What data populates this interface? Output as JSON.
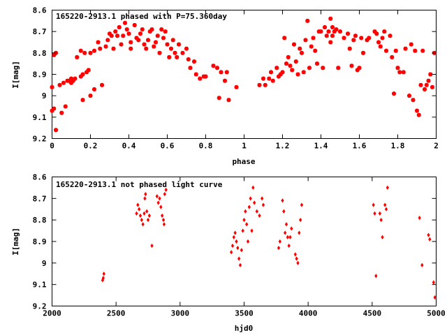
{
  "chart_data": [
    {
      "type": "scatter",
      "title": "165220-2913.1 phased with P=75.360day",
      "xlabel": "phase",
      "ylabel": "I[mag]",
      "xlim": [
        0,
        2
      ],
      "ylim": [
        8.6,
        9.2
      ],
      "y_inverted": true,
      "x_ticks": [
        "0",
        "0.2",
        "0.4",
        "0.6",
        "0.8",
        "1",
        "1.2",
        "1.4",
        "1.6",
        "1.8",
        "2"
      ],
      "y_ticks": [
        "8.6",
        "8.7",
        "8.8",
        "8.9",
        "9",
        "9.1",
        "9.2"
      ],
      "grid": false,
      "marker_color": "#ff0000",
      "points": [
        [
          0.0,
          8.96
        ],
        [
          0.0,
          9.07
        ],
        [
          0.01,
          8.81
        ],
        [
          0.01,
          9.06
        ],
        [
          0.02,
          8.8
        ],
        [
          0.02,
          9.16
        ],
        [
          0.04,
          8.95
        ],
        [
          0.05,
          9.08
        ],
        [
          0.06,
          8.94
        ],
        [
          0.07,
          9.05
        ],
        [
          0.08,
          8.93
        ],
        [
          0.09,
          8.93
        ],
        [
          0.1,
          8.92
        ],
        [
          0.1,
          8.94
        ],
        [
          0.11,
          8.93
        ],
        [
          0.12,
          8.92
        ],
        [
          0.13,
          8.82
        ],
        [
          0.15,
          8.79
        ],
        [
          0.15,
          8.91
        ],
        [
          0.16,
          8.9
        ],
        [
          0.16,
          9.02
        ],
        [
          0.17,
          8.8
        ],
        [
          0.18,
          8.89
        ],
        [
          0.19,
          8.88
        ],
        [
          0.2,
          8.8
        ],
        [
          0.2,
          9.0
        ],
        [
          0.22,
          8.79
        ],
        [
          0.22,
          8.97
        ],
        [
          0.24,
          8.75
        ],
        [
          0.25,
          8.78
        ],
        [
          0.26,
          8.95
        ],
        [
          0.28,
          8.77
        ],
        [
          0.29,
          8.74
        ],
        [
          0.3,
          8.71
        ],
        [
          0.31,
          8.72
        ],
        [
          0.32,
          8.78
        ],
        [
          0.33,
          8.7
        ],
        [
          0.34,
          8.72
        ],
        [
          0.35,
          8.68
        ],
        [
          0.36,
          8.76
        ],
        [
          0.37,
          8.72
        ],
        [
          0.38,
          8.66
        ],
        [
          0.39,
          8.69
        ],
        [
          0.4,
          8.71
        ],
        [
          0.41,
          8.75
        ],
        [
          0.41,
          8.78
        ],
        [
          0.43,
          8.67
        ],
        [
          0.44,
          8.73
        ],
        [
          0.45,
          8.74
        ],
        [
          0.46,
          8.71
        ],
        [
          0.47,
          8.69
        ],
        [
          0.48,
          8.76
        ],
        [
          0.49,
          8.78
        ],
        [
          0.5,
          8.74
        ],
        [
          0.51,
          8.7
        ],
        [
          0.52,
          8.69
        ],
        [
          0.53,
          8.77
        ],
        [
          0.54,
          8.75
        ],
        [
          0.55,
          8.72
        ],
        [
          0.56,
          8.8
        ],
        [
          0.57,
          8.69
        ],
        [
          0.58,
          8.73
        ],
        [
          0.59,
          8.7
        ],
        [
          0.6,
          8.76
        ],
        [
          0.61,
          8.82
        ],
        [
          0.62,
          8.78
        ],
        [
          0.63,
          8.74
        ],
        [
          0.64,
          8.8
        ],
        [
          0.65,
          8.82
        ],
        [
          0.66,
          8.76
        ],
        [
          0.68,
          8.8
        ],
        [
          0.7,
          8.78
        ],
        [
          0.71,
          8.83
        ],
        [
          0.72,
          8.87
        ],
        [
          0.74,
          8.84
        ],
        [
          0.75,
          8.9
        ],
        [
          0.77,
          8.92
        ],
        [
          0.79,
          8.91
        ],
        [
          0.8,
          8.91
        ],
        [
          0.84,
          8.86
        ],
        [
          0.86,
          8.87
        ],
        [
          0.87,
          9.01
        ],
        [
          0.88,
          8.89
        ],
        [
          0.9,
          8.93
        ],
        [
          0.91,
          8.89
        ],
        [
          0.92,
          9.02
        ],
        [
          0.96,
          8.96
        ],
        [
          1.08,
          8.95
        ],
        [
          1.1,
          8.92
        ],
        [
          1.11,
          8.95
        ],
        [
          1.13,
          8.92
        ],
        [
          1.14,
          8.89
        ],
        [
          1.15,
          8.93
        ],
        [
          1.17,
          8.87
        ],
        [
          1.18,
          8.91
        ],
        [
          1.19,
          8.9
        ],
        [
          1.2,
          8.89
        ],
        [
          1.21,
          8.73
        ],
        [
          1.22,
          8.85
        ],
        [
          1.23,
          8.82
        ],
        [
          1.24,
          8.86
        ],
        [
          1.25,
          8.88
        ],
        [
          1.26,
          8.76
        ],
        [
          1.27,
          8.84
        ],
        [
          1.28,
          8.9
        ],
        [
          1.29,
          8.78
        ],
        [
          1.3,
          8.8
        ],
        [
          1.31,
          8.89
        ],
        [
          1.32,
          8.74
        ],
        [
          1.33,
          8.65
        ],
        [
          1.34,
          8.87
        ],
        [
          1.35,
          8.77
        ],
        [
          1.36,
          8.73
        ],
        [
          1.37,
          8.79
        ],
        [
          1.38,
          8.85
        ],
        [
          1.39,
          8.7
        ],
        [
          1.4,
          8.7
        ],
        [
          1.41,
          8.87
        ],
        [
          1.42,
          8.68
        ],
        [
          1.43,
          8.72
        ],
        [
          1.44,
          8.7
        ],
        [
          1.45,
          8.64
        ],
        [
          1.45,
          8.75
        ],
        [
          1.46,
          8.68
        ],
        [
          1.46,
          8.72
        ],
        [
          1.47,
          8.7
        ],
        [
          1.48,
          8.69
        ],
        [
          1.49,
          8.87
        ],
        [
          1.5,
          8.7
        ],
        [
          1.52,
          8.73
        ],
        [
          1.54,
          8.71
        ],
        [
          1.55,
          8.78
        ],
        [
          1.56,
          8.86
        ],
        [
          1.57,
          8.74
        ],
        [
          1.58,
          8.72
        ],
        [
          1.59,
          8.88
        ],
        [
          1.6,
          8.87
        ],
        [
          1.61,
          8.73
        ],
        [
          1.62,
          8.8
        ],
        [
          1.64,
          8.74
        ],
        [
          1.65,
          8.73
        ],
        [
          1.68,
          8.7
        ],
        [
          1.69,
          8.71
        ],
        [
          1.7,
          8.75
        ],
        [
          1.71,
          8.77
        ],
        [
          1.72,
          8.73
        ],
        [
          1.73,
          8.7
        ],
        [
          1.74,
          8.79
        ],
        [
          1.76,
          8.72
        ],
        [
          1.77,
          8.82
        ],
        [
          1.78,
          8.99
        ],
        [
          1.79,
          8.79
        ],
        [
          1.8,
          8.87
        ],
        [
          1.81,
          8.89
        ],
        [
          1.83,
          8.89
        ],
        [
          1.84,
          8.78
        ],
        [
          1.86,
          9.0
        ],
        [
          1.87,
          8.76
        ],
        [
          1.88,
          9.02
        ],
        [
          1.89,
          8.79
        ],
        [
          1.9,
          9.07
        ],
        [
          1.91,
          9.09
        ],
        [
          1.92,
          8.95
        ],
        [
          1.93,
          8.79
        ],
        [
          1.94,
          8.97
        ],
        [
          1.95,
          8.95
        ],
        [
          1.96,
          8.93
        ],
        [
          1.97,
          8.9
        ],
        [
          1.98,
          8.96
        ],
        [
          1.99,
          8.8
        ]
      ]
    },
    {
      "type": "scatter",
      "title": "165220-2913.1 not phased light curve",
      "xlabel": "hjd0",
      "ylabel": "I[mag]",
      "xlim": [
        2000,
        5000
      ],
      "ylim": [
        8.6,
        9.2
      ],
      "y_inverted": true,
      "x_ticks": [
        "2000",
        "2500",
        "3000",
        "3500",
        "4000",
        "4500",
        "5000"
      ],
      "y_ticks": [
        "8.6",
        "8.7",
        "8.8",
        "8.9",
        "9",
        "9.1",
        "9.2"
      ],
      "grid": false,
      "marker_color": "#ff0000",
      "points": [
        [
          2395,
          9.08
        ],
        [
          2400,
          9.07
        ],
        [
          2405,
          9.05
        ],
        [
          2660,
          8.77
        ],
        [
          2670,
          8.73
        ],
        [
          2680,
          8.75
        ],
        [
          2690,
          8.78
        ],
        [
          2700,
          8.8
        ],
        [
          2710,
          8.82
        ],
        [
          2720,
          8.77
        ],
        [
          2725,
          8.7
        ],
        [
          2730,
          8.68
        ],
        [
          2740,
          8.76
        ],
        [
          2750,
          8.8
        ],
        [
          2760,
          8.78
        ],
        [
          2780,
          8.92
        ],
        [
          2820,
          8.69
        ],
        [
          2830,
          8.72
        ],
        [
          2840,
          8.7
        ],
        [
          2850,
          8.74
        ],
        [
          2860,
          8.78
        ],
        [
          2870,
          8.8
        ],
        [
          2875,
          8.82
        ],
        [
          2880,
          8.68
        ],
        [
          2890,
          8.66
        ],
        [
          3400,
          8.95
        ],
        [
          3410,
          8.92
        ],
        [
          3420,
          8.88
        ],
        [
          3430,
          8.86
        ],
        [
          3440,
          8.9
        ],
        [
          3450,
          8.93
        ],
        [
          3460,
          8.98
        ],
        [
          3470,
          9.01
        ],
        [
          3480,
          8.94
        ],
        [
          3490,
          8.85
        ],
        [
          3500,
          8.8
        ],
        [
          3510,
          8.76
        ],
        [
          3520,
          8.82
        ],
        [
          3530,
          8.9
        ],
        [
          3540,
          8.74
        ],
        [
          3550,
          8.7
        ],
        [
          3560,
          8.85
        ],
        [
          3570,
          8.65
        ],
        [
          3580,
          8.72
        ],
        [
          3600,
          8.76
        ],
        [
          3620,
          8.78
        ],
        [
          3640,
          8.7
        ],
        [
          3650,
          8.73
        ],
        [
          3770,
          8.93
        ],
        [
          3780,
          8.9
        ],
        [
          3800,
          8.71
        ],
        [
          3810,
          8.76
        ],
        [
          3820,
          8.86
        ],
        [
          3830,
          8.82
        ],
        [
          3840,
          8.88
        ],
        [
          3850,
          8.92
        ],
        [
          3860,
          8.88
        ],
        [
          3870,
          8.84
        ],
        [
          3900,
          8.96
        ],
        [
          3910,
          8.98
        ],
        [
          3920,
          9.0
        ],
        [
          3930,
          8.86
        ],
        [
          3940,
          8.8
        ],
        [
          3950,
          8.73
        ],
        [
          4510,
          8.73
        ],
        [
          4520,
          8.77
        ],
        [
          4530,
          9.06
        ],
        [
          4560,
          8.77
        ],
        [
          4570,
          8.8
        ],
        [
          4580,
          8.88
        ],
        [
          4600,
          8.73
        ],
        [
          4610,
          8.75
        ],
        [
          4620,
          8.65
        ],
        [
          4870,
          8.79
        ],
        [
          4890,
          9.01
        ],
        [
          4940,
          8.87
        ],
        [
          4950,
          8.89
        ],
        [
          4980,
          9.09
        ],
        [
          4990,
          9.16
        ]
      ]
    }
  ]
}
